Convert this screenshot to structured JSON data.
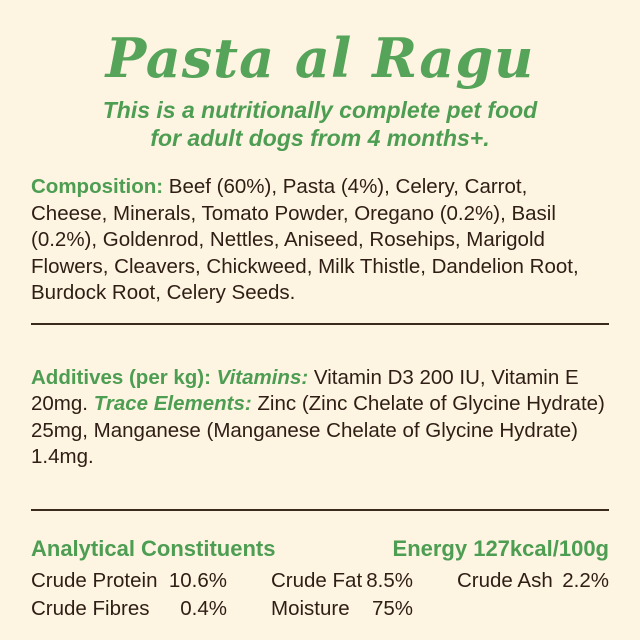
{
  "label": {
    "title": "Pasta al Ragu",
    "subtitle_line1": "This is a nutritionally complete pet food",
    "subtitle_line2": "for adult dogs from 4 months+.",
    "composition": {
      "heading": "Composition:",
      "text": "Beef (60%), Pasta (4%), Celery, Carrot, Cheese, Minerals, Tomato Powder, Oregano (0.2%), Basil (0.2%), Goldenrod, Nettles, Aniseed, Rosehips, Marigold Flowers, Cleavers, Chickweed, Milk Thistle, Dandelion Root, Burdock Root, Celery Seeds."
    },
    "additives": {
      "heading": "Additives (per kg):",
      "vitamins_label": "Vitamins:",
      "vitamins_text": "Vitamin D3 200 IU, Vitamin E 20mg.",
      "trace_label": "Trace Elements:",
      "trace_text": "Zinc (Zinc Chelate of Glycine Hydrate) 25mg, Manganese (Manganese Chelate of Glycine Hydrate) 1.4mg."
    },
    "analytical": {
      "heading": "Analytical Constituents",
      "energy": "Energy 127kcal/100g",
      "constituents": [
        {
          "label": "Crude Protein",
          "value": "10.6%"
        },
        {
          "label": "Crude Fat",
          "value": "8.5%"
        },
        {
          "label": "Crude Ash",
          "value": "2.2%"
        },
        {
          "label": "Crude Fibres",
          "value": "0.4%"
        },
        {
          "label": "Moisture",
          "value": "75%"
        }
      ]
    },
    "colors": {
      "background": "#fdf4e2",
      "accent_green": "#4d9d52",
      "title_green": "#56a35a",
      "body_text": "#2e1e14",
      "divider": "#3a2a1c"
    }
  }
}
